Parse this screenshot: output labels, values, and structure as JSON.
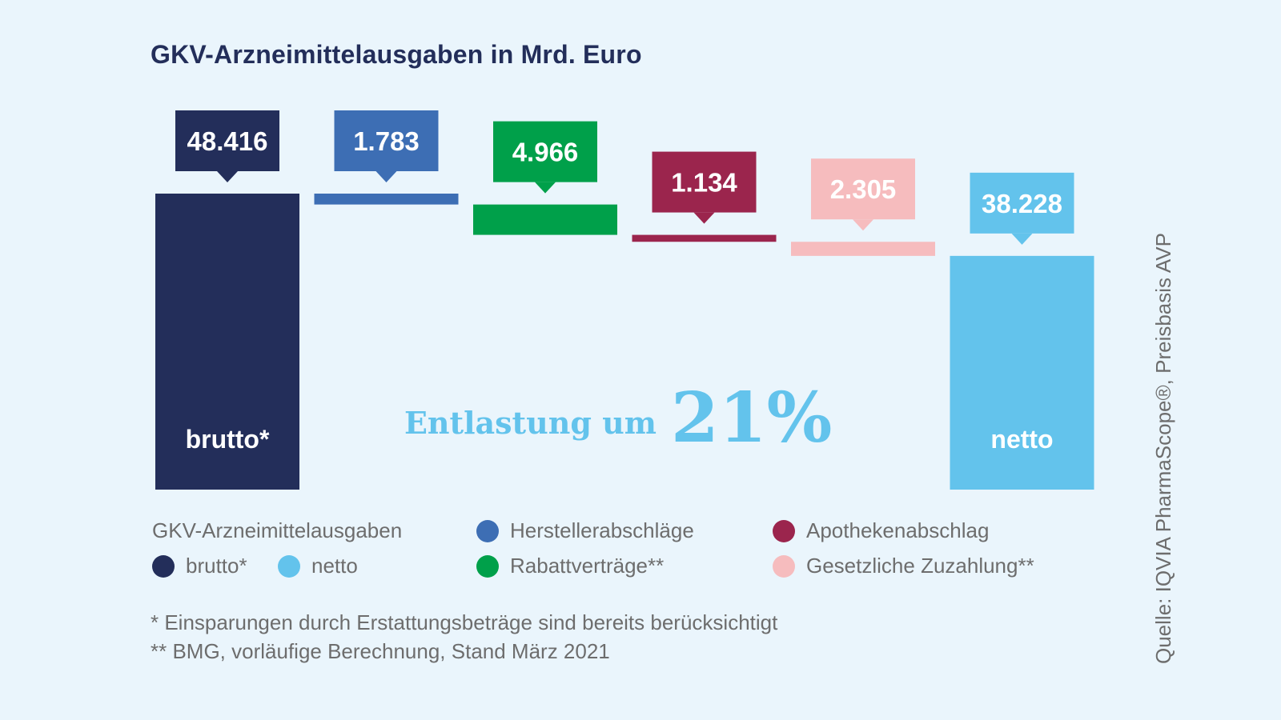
{
  "title": "GKV-Arzneimittelausgaben in Mrd. Euro",
  "chart_data": {
    "type": "bar",
    "subtype": "waterfall",
    "title": "GKV-Arzneimittelausgaben in Mrd. Euro",
    "unit": "Mrd. Euro",
    "categories": [
      "brutto*",
      "Herstellerabschläge",
      "Rabattverträge**",
      "Apothekenabschlag",
      "Gesetzliche Zuzahlung**",
      "netto"
    ],
    "values": [
      48.416,
      -1.783,
      -4.966,
      -1.134,
      -2.305,
      38.228
    ],
    "value_labels": [
      "48.416",
      "1.783",
      "4.966",
      "1.134",
      "2.305",
      "38.228"
    ],
    "bar_labels": [
      "brutto*",
      "",
      "",
      "",
      "",
      "netto"
    ],
    "colors": [
      "#232e5a",
      "#3d6eb4",
      "#00a04a",
      "#9b254d",
      "#f6bcbe",
      "#63c3ec"
    ],
    "ylim": [
      0,
      48.416
    ],
    "grid": false,
    "annotation": {
      "text": "Entlastung um",
      "value": "21%"
    },
    "legend_position": "bottom"
  },
  "legend": {
    "group_label": "GKV-Arzneimittelausgaben",
    "items": [
      {
        "label": "brutto*",
        "color": "#232e5a"
      },
      {
        "label": "netto",
        "color": "#63c3ec"
      },
      {
        "label": "Herstellerabschläge",
        "color": "#3d6eb4"
      },
      {
        "label": "Rabattverträge**",
        "color": "#00a04a"
      },
      {
        "label": "Apothekenabschlag",
        "color": "#9b254d"
      },
      {
        "label": "Gesetzliche Zuzahlung**",
        "color": "#f6bcbe"
      }
    ]
  },
  "footnotes": [
    "* Einsparungen durch Erstattungsbeträge sind bereits berücksichtigt",
    "** BMG, vorläufige Berechnung, Stand März 2021"
  ],
  "source": "Quelle: IQVIA PharmaScope®, Preisbasis AVP"
}
